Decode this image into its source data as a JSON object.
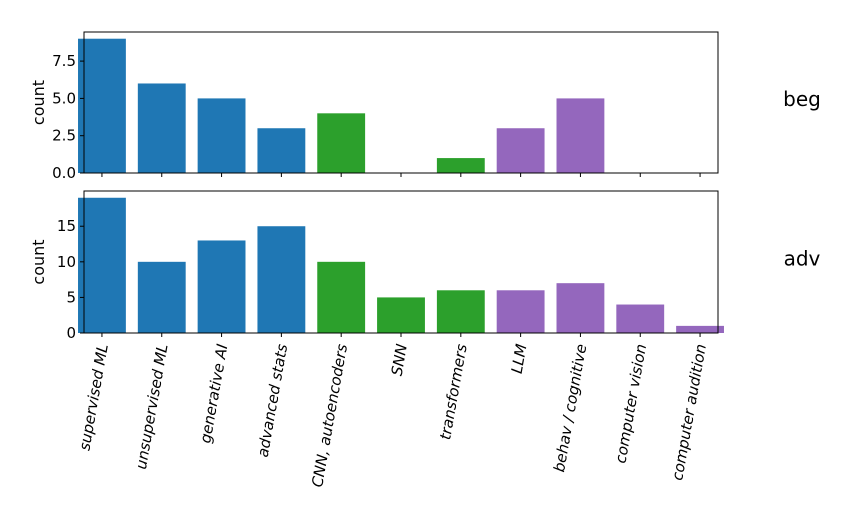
{
  "colors": {
    "supervised_group": "#1f77b4",
    "deep_group": "#2ca02c",
    "cognitive_group": "#9467bd"
  },
  "chart_data": {
    "type": "bar",
    "categories": [
      "supervised ML",
      "unsupervised ML",
      "generative AI",
      "advanced stats",
      "CNN, autoencoders",
      "SNN",
      "transformers",
      "LLM",
      "behav / cognitive",
      "computer vision",
      "computer audition"
    ],
    "category_groups": [
      "supervised_group",
      "supervised_group",
      "supervised_group",
      "supervised_group",
      "deep_group",
      "deep_group",
      "deep_group",
      "cognitive_group",
      "cognitive_group",
      "cognitive_group",
      "cognitive_group"
    ],
    "panels": [
      {
        "name": "beg",
        "ylabel": "count",
        "ylim": [
          0,
          9.45
        ],
        "yticks": [
          0,
          2.5,
          5,
          7.5
        ],
        "ytick_labels": [
          "0.0",
          "2.5",
          "5.0",
          "7.5"
        ],
        "values": [
          9,
          6,
          5,
          3,
          4,
          0,
          1,
          3,
          5,
          0,
          0
        ]
      },
      {
        "name": "adv",
        "ylabel": "count",
        "ylim": [
          0,
          19.95
        ],
        "yticks": [
          0,
          5,
          10,
          15
        ],
        "ytick_labels": [
          "0",
          "5",
          "10",
          "15"
        ],
        "values": [
          19,
          10,
          13,
          15,
          10,
          5,
          6,
          6,
          7,
          4,
          1
        ]
      }
    ]
  }
}
